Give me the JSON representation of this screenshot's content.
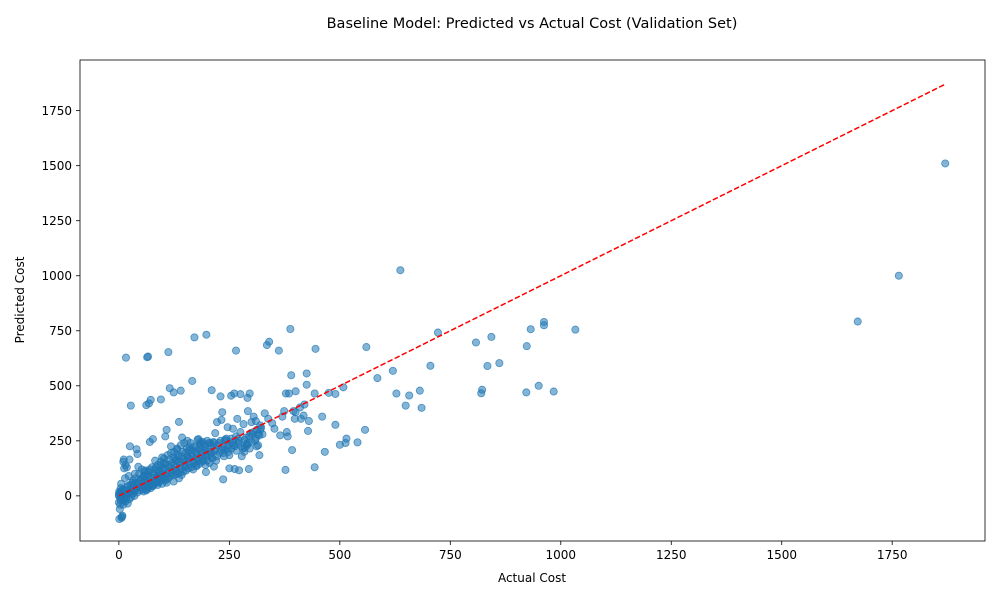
{
  "chart_data": {
    "type": "scatter",
    "title": "Baseline Model: Predicted vs Actual Cost (Validation Set)",
    "xlabel": "Actual Cost",
    "ylabel": "Predicted Cost",
    "xlim": [
      -88,
      1960
    ],
    "ylim": [
      -205,
      1980
    ],
    "xticks": [
      0,
      250,
      500,
      750,
      1000,
      1250,
      1500,
      1750
    ],
    "yticks": [
      0,
      250,
      500,
      750,
      1000,
      1250,
      1500,
      1750
    ],
    "grid": false,
    "point_color": "#1f77b4",
    "reference_line": {
      "style": "dashed",
      "color": "#ff0000",
      "from": [
        0,
        0
      ],
      "to": [
        1870,
        1870
      ]
    },
    "points": [
      [
        1870,
        1510
      ],
      [
        1765,
        1000
      ],
      [
        1672,
        792
      ],
      [
        637,
        1025
      ],
      [
        1033,
        755
      ],
      [
        962,
        790
      ],
      [
        962,
        775
      ],
      [
        932,
        757
      ],
      [
        923,
        680
      ],
      [
        861,
        603
      ],
      [
        843,
        722
      ],
      [
        834,
        590
      ],
      [
        822,
        482
      ],
      [
        820,
        466
      ],
      [
        808,
        697
      ],
      [
        984,
        474
      ],
      [
        950,
        500
      ],
      [
        922,
        470
      ],
      [
        722,
        742
      ],
      [
        705,
        591
      ],
      [
        681,
        478
      ],
      [
        685,
        400
      ],
      [
        657,
        456
      ],
      [
        649,
        410
      ],
      [
        628,
        465
      ],
      [
        620,
        568
      ],
      [
        585,
        535
      ],
      [
        560,
        676
      ],
      [
        557,
        300
      ],
      [
        540,
        243
      ],
      [
        515,
        260
      ],
      [
        513,
        240
      ],
      [
        508,
        493
      ],
      [
        500,
        232
      ],
      [
        490,
        323
      ],
      [
        490,
        463
      ],
      [
        475,
        468
      ],
      [
        466,
        200
      ],
      [
        460,
        360
      ],
      [
        445,
        668
      ],
      [
        443,
        465
      ],
      [
        443,
        130
      ],
      [
        430,
        340
      ],
      [
        428,
        295
      ],
      [
        425,
        505
      ],
      [
        425,
        556
      ],
      [
        420,
        415
      ],
      [
        418,
        365
      ],
      [
        412,
        350
      ],
      [
        410,
        402
      ],
      [
        400,
        475
      ],
      [
        400,
        380
      ],
      [
        398,
        350
      ],
      [
        395,
        385
      ],
      [
        392,
        208
      ],
      [
        390,
        548
      ],
      [
        388,
        758
      ],
      [
        385,
        465
      ],
      [
        382,
        270
      ],
      [
        380,
        290
      ],
      [
        378,
        465
      ],
      [
        377,
        118
      ],
      [
        374,
        385
      ],
      [
        370,
        360
      ],
      [
        365,
        275
      ],
      [
        362,
        660
      ],
      [
        352,
        305
      ],
      [
        347,
        330
      ],
      [
        340,
        700
      ],
      [
        338,
        350
      ],
      [
        335,
        685
      ],
      [
        330,
        375
      ],
      [
        325,
        280
      ],
      [
        320,
        320
      ],
      [
        318,
        185
      ],
      [
        315,
        230
      ],
      [
        312,
        300
      ],
      [
        310,
        340
      ],
      [
        305,
        360
      ],
      [
        300,
        335
      ],
      [
        298,
        285
      ],
      [
        296,
        465
      ],
      [
        294,
        122
      ],
      [
        292,
        385
      ],
      [
        291,
        445
      ],
      [
        289,
        235
      ],
      [
        285,
        218
      ],
      [
        282,
        326
      ],
      [
        278,
        180
      ],
      [
        275,
        462
      ],
      [
        272,
        116
      ],
      [
        270,
        260
      ],
      [
        268,
        350
      ],
      [
        265,
        660
      ],
      [
        262,
        122
      ],
      [
        261,
        465
      ],
      [
        258,
        305
      ],
      [
        254,
        455
      ],
      [
        250,
        125
      ],
      [
        246,
        312
      ],
      [
        243,
        260
      ],
      [
        240,
        210
      ],
      [
        236,
        75
      ],
      [
        234,
        380
      ],
      [
        232,
        345
      ],
      [
        230,
        452
      ],
      [
        222,
        335
      ],
      [
        218,
        285
      ],
      [
        215,
        133
      ],
      [
        210,
        480
      ],
      [
        207,
        240
      ],
      [
        205,
        185
      ],
      [
        198,
        732
      ],
      [
        197,
        108
      ],
      [
        190,
        245
      ],
      [
        185,
        225
      ],
      [
        180,
        258
      ],
      [
        175,
        140
      ],
      [
        171,
        720
      ],
      [
        166,
        522
      ],
      [
        160,
        220
      ],
      [
        155,
        180
      ],
      [
        150,
        130
      ],
      [
        143,
        265
      ],
      [
        140,
        478
      ],
      [
        136,
        336
      ],
      [
        132,
        210
      ],
      [
        128,
        165
      ],
      [
        124,
        470
      ],
      [
        118,
        225
      ],
      [
        115,
        489
      ],
      [
        112,
        653
      ],
      [
        108,
        300
      ],
      [
        105,
        270
      ],
      [
        102,
        150
      ],
      [
        98,
        175
      ],
      [
        95,
        438
      ],
      [
        90,
        115
      ],
      [
        87,
        90
      ],
      [
        82,
        160
      ],
      [
        77,
        258
      ],
      [
        72,
        436
      ],
      [
        70,
        245
      ],
      [
        68,
        420
      ],
      [
        66,
        633
      ],
      [
        64,
        630
      ],
      [
        62,
        412
      ],
      [
        60,
        115
      ],
      [
        56,
        90
      ],
      [
        52,
        120
      ],
      [
        48,
        70
      ],
      [
        44,
        132
      ],
      [
        42,
        190
      ],
      [
        40,
        212
      ],
      [
        36,
        100
      ],
      [
        32,
        70
      ],
      [
        30,
        60
      ],
      [
        27,
        410
      ],
      [
        25,
        225
      ],
      [
        24,
        165
      ],
      [
        22,
        90
      ],
      [
        20,
        45
      ],
      [
        18,
        130
      ],
      [
        16,
        628
      ],
      [
        15,
        140
      ],
      [
        14,
        80
      ],
      [
        12,
        125
      ],
      [
        11,
        165
      ],
      [
        10,
        155
      ],
      [
        9,
        30
      ],
      [
        8,
        -90
      ],
      [
        7,
        -95
      ],
      [
        6,
        -100
      ],
      [
        5,
        20
      ],
      [
        4,
        -20
      ],
      [
        3,
        -40
      ],
      [
        2,
        -60
      ],
      [
        1,
        -105
      ],
      [
        0,
        -30
      ],
      [
        0,
        0
      ],
      [
        0,
        10
      ],
      [
        1,
        20
      ],
      [
        2,
        5
      ],
      [
        3,
        -10
      ],
      [
        4,
        35
      ],
      [
        5,
        55
      ],
      [
        6,
        -5
      ],
      [
        8,
        15
      ],
      [
        10,
        -15
      ],
      [
        12,
        25
      ],
      [
        15,
        -25
      ],
      [
        18,
        5
      ],
      [
        20,
        -35
      ],
      [
        22,
        15
      ],
      [
        25,
        30
      ],
      [
        28,
        -5
      ],
      [
        30,
        20
      ],
      [
        33,
        45
      ],
      [
        35,
        0
      ],
      [
        38,
        30
      ],
      [
        40,
        60
      ],
      [
        42,
        15
      ],
      [
        45,
        40
      ],
      [
        48,
        25
      ],
      [
        50,
        75
      ],
      [
        52,
        50
      ],
      [
        55,
        30
      ],
      [
        58,
        65
      ],
      [
        60,
        90
      ],
      [
        62,
        45
      ],
      [
        65,
        70
      ],
      [
        68,
        110
      ],
      [
        70,
        55
      ],
      [
        72,
        85
      ],
      [
        75,
        130
      ],
      [
        78,
        60
      ],
      [
        80,
        95
      ],
      [
        82,
        120
      ],
      [
        85,
        70
      ],
      [
        88,
        140
      ],
      [
        90,
        105
      ],
      [
        92,
        80
      ],
      [
        95,
        155
      ],
      [
        98,
        115
      ],
      [
        100,
        90
      ],
      [
        102,
        170
      ],
      [
        105,
        125
      ],
      [
        108,
        100
      ],
      [
        110,
        185
      ],
      [
        112,
        140
      ],
      [
        115,
        110
      ],
      [
        118,
        195
      ],
      [
        120,
        150
      ],
      [
        122,
        120
      ],
      [
        125,
        200
      ],
      [
        128,
        160
      ],
      [
        130,
        130
      ],
      [
        132,
        215
      ],
      [
        135,
        175
      ],
      [
        138,
        140
      ],
      [
        140,
        230
      ],
      [
        142,
        180
      ],
      [
        145,
        150
      ],
      [
        148,
        240
      ],
      [
        150,
        195
      ],
      [
        152,
        160
      ],
      [
        155,
        250
      ],
      [
        158,
        205
      ],
      [
        160,
        170
      ],
      [
        162,
        240
      ],
      [
        165,
        190
      ],
      [
        168,
        150
      ],
      [
        170,
        225
      ],
      [
        172,
        200
      ],
      [
        175,
        170
      ],
      [
        178,
        255
      ],
      [
        180,
        210
      ],
      [
        182,
        175
      ],
      [
        185,
        245
      ],
      [
        188,
        195
      ],
      [
        190,
        160
      ],
      [
        192,
        235
      ],
      [
        195,
        205
      ],
      [
        198,
        180
      ],
      [
        200,
        250
      ],
      [
        202,
        215
      ],
      [
        205,
        150
      ],
      [
        208,
        230
      ],
      [
        210,
        195
      ],
      [
        212,
        170
      ],
      [
        215,
        240
      ],
      [
        218,
        210
      ],
      [
        220,
        160
      ],
      [
        225,
        230
      ],
      [
        228,
        195
      ],
      [
        230,
        250
      ],
      [
        235,
        220
      ],
      [
        238,
        180
      ],
      [
        240,
        255
      ],
      [
        245,
        230
      ],
      [
        248,
        200
      ],
      [
        252,
        245
      ],
      [
        255,
        215
      ],
      [
        258,
        240
      ],
      [
        262,
        225
      ],
      [
        265,
        270
      ],
      [
        270,
        240
      ],
      [
        275,
        290
      ],
      [
        280,
        215
      ],
      [
        285,
        255
      ],
      [
        290,
        230
      ],
      [
        295,
        270
      ],
      [
        300,
        245
      ],
      [
        305,
        290
      ],
      [
        310,
        260
      ],
      [
        315,
        280
      ],
      [
        320,
        300
      ],
      [
        10,
        -40
      ],
      [
        12,
        -20
      ],
      [
        14,
        0
      ],
      [
        16,
        -10
      ],
      [
        18,
        40
      ],
      [
        20,
        10
      ],
      [
        24,
        -15
      ],
      [
        26,
        50
      ],
      [
        28,
        20
      ],
      [
        32,
        10
      ],
      [
        34,
        55
      ],
      [
        36,
        25
      ],
      [
        38,
        80
      ],
      [
        44,
        55
      ],
      [
        46,
        100
      ],
      [
        50,
        40
      ],
      [
        54,
        85
      ],
      [
        56,
        20
      ],
      [
        58,
        110
      ],
      [
        62,
        75
      ],
      [
        64,
        30
      ],
      [
        66,
        95
      ],
      [
        70,
        120
      ],
      [
        74,
        50
      ],
      [
        76,
        100
      ],
      [
        80,
        70
      ],
      [
        84,
        130
      ],
      [
        86,
        85
      ],
      [
        90,
        60
      ],
      [
        94,
        140
      ],
      [
        96,
        100
      ],
      [
        100,
        125
      ],
      [
        104,
        75
      ],
      [
        106,
        145
      ],
      [
        110,
        90
      ],
      [
        114,
        165
      ],
      [
        116,
        130
      ],
      [
        120,
        100
      ],
      [
        124,
        175
      ],
      [
        126,
        140
      ],
      [
        130,
        110
      ],
      [
        134,
        185
      ],
      [
        136,
        155
      ],
      [
        140,
        120
      ],
      [
        144,
        200
      ],
      [
        146,
        165
      ],
      [
        150,
        140
      ],
      [
        154,
        215
      ],
      [
        156,
        175
      ],
      [
        160,
        145
      ],
      [
        164,
        210
      ],
      [
        166,
        180
      ],
      [
        170,
        150
      ],
      [
        174,
        220
      ],
      [
        176,
        190
      ],
      [
        180,
        160
      ],
      [
        184,
        235
      ],
      [
        186,
        200
      ],
      [
        190,
        170
      ],
      [
        194,
        225
      ],
      [
        196,
        190
      ],
      [
        200,
        160
      ],
      [
        204,
        240
      ],
      [
        206,
        200
      ],
      [
        210,
        175
      ],
      [
        214,
        245
      ],
      [
        216,
        205
      ],
      [
        222,
        180
      ],
      [
        226,
        240
      ],
      [
        232,
        210
      ],
      [
        236,
        195
      ],
      [
        242,
        250
      ],
      [
        246,
        215
      ],
      [
        250,
        185
      ],
      [
        254,
        260
      ],
      [
        260,
        230
      ],
      [
        266,
        205
      ],
      [
        272,
        250
      ],
      [
        278,
        225
      ],
      [
        284,
        200
      ],
      [
        288,
        265
      ],
      [
        292,
        240
      ],
      [
        296,
        215
      ],
      [
        302,
        280
      ],
      [
        308,
        250
      ],
      [
        312,
        225
      ],
      [
        318,
        275
      ],
      [
        322,
        310
      ],
      [
        62,
        25
      ],
      [
        64,
        55
      ],
      [
        68,
        40
      ],
      [
        72,
        35
      ],
      [
        78,
        45
      ],
      [
        84,
        60
      ],
      [
        88,
        80
      ],
      [
        92,
        65
      ],
      [
        96,
        85
      ],
      [
        106,
        70
      ],
      [
        112,
        80
      ],
      [
        118,
        90
      ],
      [
        126,
        95
      ],
      [
        132,
        100
      ],
      [
        138,
        105
      ],
      [
        146,
        110
      ],
      [
        152,
        115
      ],
      [
        158,
        125
      ],
      [
        164,
        130
      ],
      [
        168,
        120
      ],
      [
        176,
        135
      ],
      [
        182,
        145
      ],
      [
        188,
        155
      ],
      [
        196,
        140
      ],
      [
        136,
        80
      ],
      [
        142,
        95
      ],
      [
        124,
        65
      ],
      [
        108,
        60
      ],
      [
        98,
        55
      ],
      [
        88,
        50
      ],
      [
        76,
        45
      ],
      [
        66,
        40
      ]
    ]
  }
}
